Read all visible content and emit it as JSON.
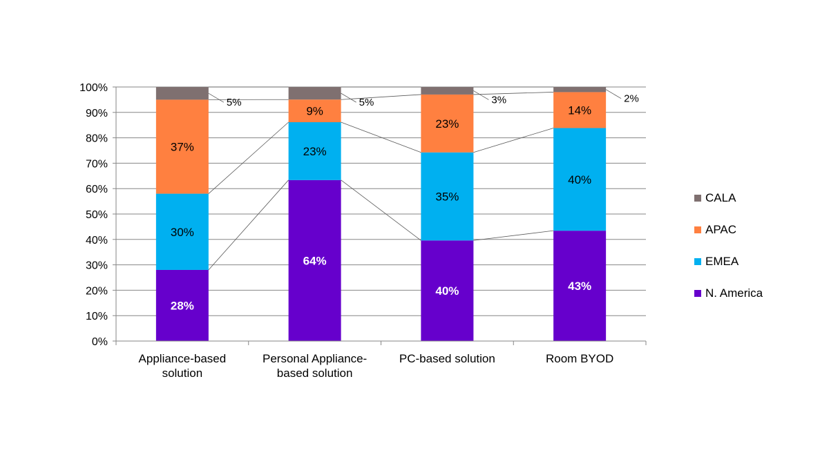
{
  "chart_data": {
    "type": "bar",
    "stacked": true,
    "categories": [
      [
        "Appliance-based",
        "solution"
      ],
      [
        "Personal Appliance-",
        "based solution"
      ],
      [
        "PC-based solution"
      ],
      [
        "Room BYOD"
      ]
    ],
    "ylim": [
      0,
      100
    ],
    "yticks": [
      0,
      10,
      20,
      30,
      40,
      50,
      60,
      70,
      80,
      90,
      100
    ],
    "ytick_suffix": "%",
    "grid": true,
    "legend_position": "right",
    "series": [
      {
        "name": "N. America",
        "color": "#6600cc",
        "label_color": "#ffffff",
        "label_bold": true,
        "values": [
          28,
          64,
          40,
          43
        ],
        "labels": [
          "28%",
          "64%",
          "40%",
          "43%"
        ]
      },
      {
        "name": "EMEA",
        "color": "#00b0f0",
        "label_color": "#000000",
        "label_bold": false,
        "values": [
          30,
          23,
          35,
          40
        ],
        "labels": [
          "30%",
          "23%",
          "35%",
          "40%"
        ]
      },
      {
        "name": "APAC",
        "color": "#ff8040",
        "label_color": "#000000",
        "label_bold": false,
        "values": [
          37,
          9,
          23,
          14
        ],
        "labels": [
          "37%",
          "9%",
          "23%",
          "14%"
        ]
      },
      {
        "name": "CALA",
        "color": "#7f7070",
        "label_color": "#000000",
        "label_bold": false,
        "values": [
          5,
          5,
          3,
          2
        ],
        "labels": [
          "5%",
          "5%",
          "3%",
          "2%"
        ],
        "callout": true
      }
    ],
    "legend_order": [
      "CALA",
      "APAC",
      "EMEA",
      "N. America"
    ]
  }
}
